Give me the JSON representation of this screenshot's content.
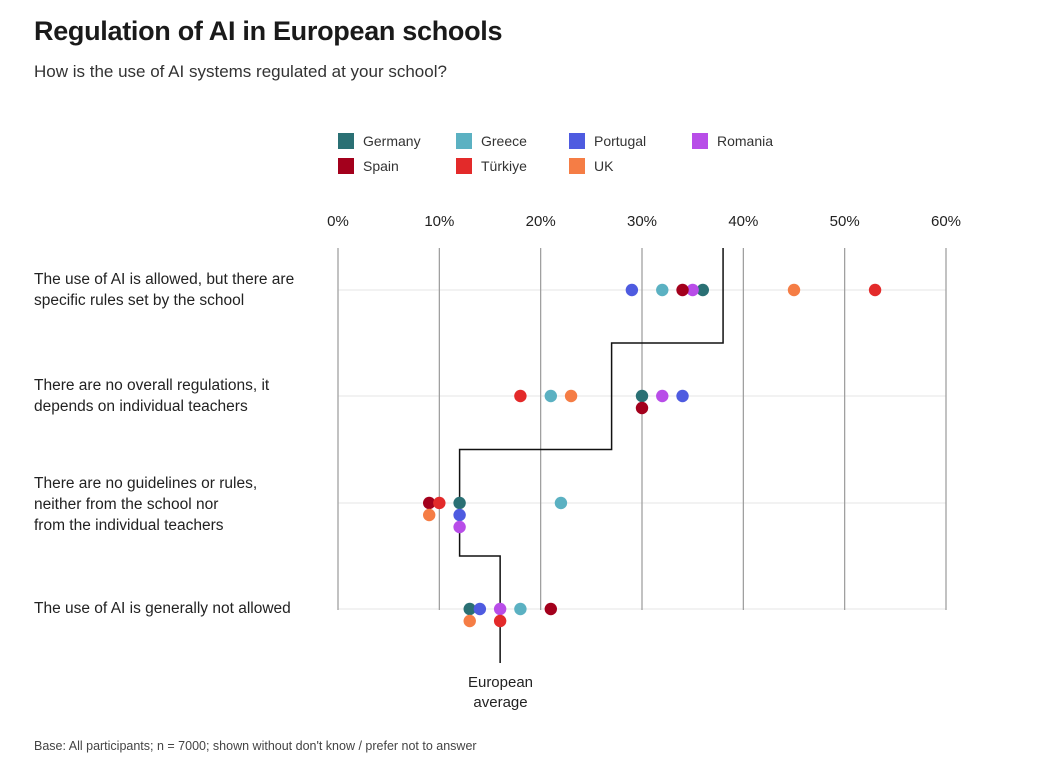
{
  "header": {
    "title": "Regulation of AI in European schools",
    "subtitle": "How is the use of AI systems regulated at your school?"
  },
  "footnote": "Base: All participants; n = 7000; shown without don't know / prefer not to answer",
  "average_label": "European\naverage",
  "chart_data": {
    "type": "scatter",
    "title": "Regulation of AI in European schools",
    "subtitle": "How is the use of AI systems regulated at your school?",
    "orientation": "horizontal-dot-plot",
    "xlim": [
      0,
      60
    ],
    "x_ticks": [
      "0%",
      "10%",
      "20%",
      "30%",
      "40%",
      "50%",
      "60%"
    ],
    "grid": true,
    "legend_position": "top",
    "categories": [
      "The use of AI is allowed, but there are\nspecific rules set by the school",
      "There are no overall regulations, it\ndepends on individual teachers",
      "There are no guidelines or rules,\nneither from the school nor\nfrom the individual teachers",
      "The use of AI is generally not allowed"
    ],
    "series": [
      {
        "name": "Germany",
        "color": "#2a7074",
        "values": [
          36,
          30,
          12,
          13
        ]
      },
      {
        "name": "Greece",
        "color": "#5bb1c2",
        "values": [
          32,
          21,
          22,
          18
        ]
      },
      {
        "name": "Portugal",
        "color": "#4e5be0",
        "values": [
          29,
          34,
          12,
          14
        ]
      },
      {
        "name": "Romania",
        "color": "#b84de8",
        "values": [
          35,
          32,
          12,
          16
        ]
      },
      {
        "name": "Spain",
        "color": "#a3001c",
        "values": [
          34,
          30,
          9,
          21
        ]
      },
      {
        "name": "Türkiye",
        "color": "#e32a2a",
        "values": [
          53,
          18,
          10,
          16
        ]
      },
      {
        "name": "UK",
        "color": "#f57d45",
        "values": [
          45,
          23,
          9,
          13
        ]
      }
    ],
    "european_average": [
      38,
      27,
      12,
      16
    ]
  }
}
